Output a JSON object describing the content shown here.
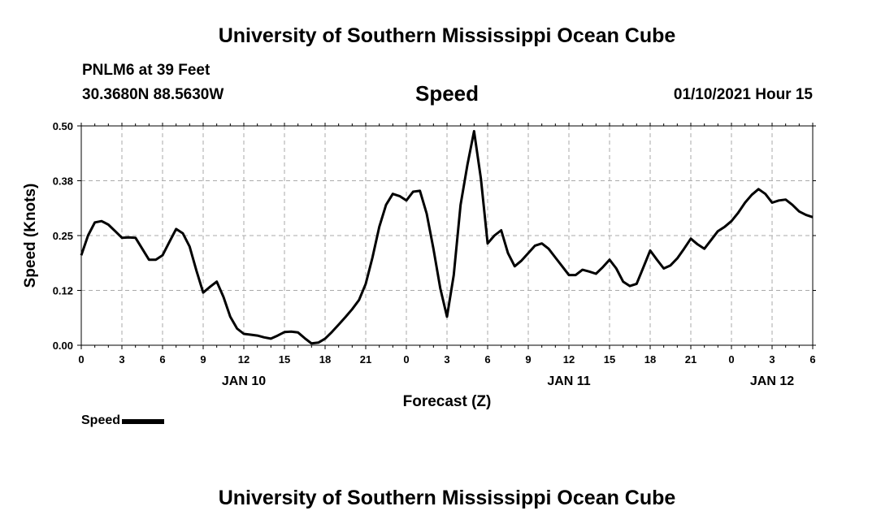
{
  "header": {
    "title": "University of Southern Mississippi Ocean Cube",
    "station": "PNLM6 at 39 Feet",
    "coords": "30.3680N 88.5630W",
    "variable": "Speed",
    "datetime": "01/10/2021 Hour 15"
  },
  "footer": {
    "title": "University of Southern Mississippi Ocean Cube"
  },
  "legend": {
    "label": "Speed",
    "color": "#000000"
  },
  "chart_data": {
    "type": "line",
    "title": "Speed",
    "xlabel": "Forecast (Z)",
    "ylabel": "Speed (Knots)",
    "ylim": [
      0,
      0.5
    ],
    "y_ticks": [
      "0.00",
      "0.12",
      "0.25",
      "0.38",
      "0.50"
    ],
    "x_unit": "hours from JAN 10 00Z",
    "xlim": [
      0,
      54
    ],
    "x_ticks": [
      {
        "x": 0,
        "label": "0"
      },
      {
        "x": 3,
        "label": "3"
      },
      {
        "x": 6,
        "label": "6"
      },
      {
        "x": 9,
        "label": "9"
      },
      {
        "x": 12,
        "label": "12"
      },
      {
        "x": 15,
        "label": "15"
      },
      {
        "x": 18,
        "label": "18"
      },
      {
        "x": 21,
        "label": "21"
      },
      {
        "x": 24,
        "label": "0"
      },
      {
        "x": 27,
        "label": "3"
      },
      {
        "x": 30,
        "label": "6"
      },
      {
        "x": 33,
        "label": "9"
      },
      {
        "x": 36,
        "label": "12"
      },
      {
        "x": 39,
        "label": "15"
      },
      {
        "x": 42,
        "label": "18"
      },
      {
        "x": 45,
        "label": "21"
      },
      {
        "x": 48,
        "label": "0"
      },
      {
        "x": 51,
        "label": "3"
      },
      {
        "x": 54,
        "label": "6"
      }
    ],
    "day_labels": [
      {
        "x": 12,
        "label": "JAN 10"
      },
      {
        "x": 36,
        "label": "JAN 11"
      },
      {
        "x": 51,
        "label": "JAN 12"
      }
    ],
    "grid": true,
    "series": [
      {
        "name": "Speed",
        "color": "#000000",
        "x": [
          0,
          0.5,
          1,
          1.5,
          2,
          2.5,
          3,
          3.5,
          4,
          4.5,
          5,
          5.5,
          6,
          6.5,
          7,
          7.5,
          8,
          8.5,
          9,
          9.5,
          10,
          10.5,
          11,
          11.5,
          12,
          12.5,
          13,
          13.5,
          14,
          14.5,
          15,
          15.5,
          16,
          16.5,
          17,
          17.5,
          18,
          18.5,
          19,
          19.5,
          20,
          20.5,
          21,
          21.5,
          22,
          22.5,
          23,
          23.5,
          24,
          24.5,
          25,
          25.5,
          26,
          26.5,
          27,
          27.5,
          28,
          28.5,
          29,
          29.5,
          30,
          30.5,
          31,
          31.5,
          32,
          32.5,
          33,
          33.5,
          34,
          34.5,
          35,
          35.5,
          36,
          36.5,
          37,
          37.5,
          38,
          38.5,
          39,
          39.5,
          40,
          40.5,
          41,
          41.5,
          42,
          42.5,
          43,
          43.5,
          44,
          44.5,
          45,
          45.5,
          46,
          46.5,
          47,
          47.5,
          48,
          48.5,
          49,
          49.5,
          50,
          50.5,
          51,
          51.5,
          52,
          52.5,
          53,
          53.5,
          54
        ],
        "values": [
          0.205,
          0.25,
          0.28,
          0.283,
          0.275,
          0.26,
          0.245,
          0.246,
          0.245,
          0.22,
          0.195,
          0.195,
          0.205,
          0.235,
          0.265,
          0.255,
          0.225,
          0.17,
          0.12,
          0.133,
          0.145,
          0.11,
          0.065,
          0.038,
          0.026,
          0.024,
          0.022,
          0.018,
          0.015,
          0.022,
          0.03,
          0.031,
          0.029,
          0.016,
          0.004,
          0.006,
          0.015,
          0.03,
          0.047,
          0.064,
          0.082,
          0.103,
          0.14,
          0.2,
          0.27,
          0.32,
          0.345,
          0.34,
          0.33,
          0.35,
          0.352,
          0.3,
          0.22,
          0.13,
          0.065,
          0.16,
          0.32,
          0.41,
          0.488,
          0.38,
          0.232,
          0.25,
          0.262,
          0.21,
          0.18,
          0.193,
          0.21,
          0.227,
          0.232,
          0.22,
          0.2,
          0.18,
          0.16,
          0.16,
          0.172,
          0.168,
          0.163,
          0.178,
          0.195,
          0.175,
          0.145,
          0.135,
          0.14,
          0.178,
          0.216,
          0.195,
          0.175,
          0.182,
          0.198,
          0.22,
          0.243,
          0.23,
          0.22,
          0.24,
          0.26,
          0.27,
          0.283,
          0.302,
          0.325,
          0.343,
          0.356,
          0.345,
          0.325,
          0.33,
          0.332,
          0.32,
          0.305,
          0.297,
          0.292
        ]
      }
    ]
  }
}
